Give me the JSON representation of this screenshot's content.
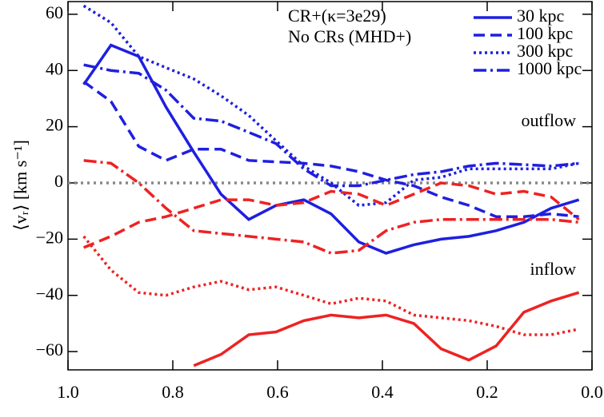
{
  "chart_data": {
    "type": "line",
    "y_label": "⟨vᵣ⟩ [km s⁻¹]",
    "x": [
      0.97,
      0.918,
      0.865,
      0.813,
      0.76,
      0.708,
      0.655,
      0.603,
      0.55,
      0.498,
      0.445,
      0.393,
      0.34,
      0.288,
      0.235,
      0.183,
      0.13,
      0.078,
      0.025
    ],
    "xlim": [
      1,
      0
    ],
    "ylim": [
      -66.5,
      64.5
    ],
    "xticks": [
      {
        "value": 1,
        "label": "1.0"
      },
      0.8,
      0.6,
      0.4,
      0.2,
      {
        "value": 0,
        "label": "0.0"
      }
    ],
    "yticks": [
      {
        "value": -60,
        "label": "−60"
      },
      {
        "value": -40,
        "label": "−40"
      },
      {
        "value": -20,
        "label": "−20"
      },
      0,
      20,
      40,
      60
    ],
    "hline": 0,
    "hline_color": "#888888",
    "groups": [
      {
        "label": "CR+(κ=3e29)",
        "color": "#1f1fe0"
      },
      {
        "label": "No CRs (MHD+)",
        "color": "#ee2222"
      }
    ],
    "annotations": [
      {
        "text": "outflow",
        "color": "#808080"
      },
      {
        "text": "inflow",
        "color": "#808080"
      }
    ],
    "series": [
      {
        "name": "30 kpc",
        "color": "#1f1fe0",
        "style": "solid",
        "values": [
          35,
          49,
          45,
          27,
          11,
          -4,
          -13,
          -8,
          -6,
          -11,
          -21,
          -25,
          -22,
          -20,
          -19,
          -17,
          -14,
          -9,
          -6
        ]
      },
      {
        "name": "100 kpc",
        "color": "#1f1fe0",
        "style": "dashed",
        "values": [
          36,
          29,
          13,
          8,
          12,
          12,
          8,
          7.5,
          7,
          6,
          4,
          1,
          -1,
          -5,
          -8,
          -12,
          -12,
          -11,
          -12
        ]
      },
      {
        "name": "300 kpc",
        "color": "#1f1fe0",
        "style": "dotted",
        "values": [
          63,
          57,
          45,
          41,
          37,
          31,
          24,
          15,
          6,
          0,
          -8,
          -7,
          1,
          2,
          5,
          5,
          5,
          5,
          7
        ]
      },
      {
        "name": "1000 kpc",
        "color": "#1f1fe0",
        "style": "dashdot",
        "values": [
          42,
          40,
          39,
          33,
          23,
          22,
          18,
          14,
          5,
          -1,
          -1,
          1,
          3,
          4,
          6,
          7,
          6.5,
          6,
          7
        ]
      },
      {
        "color": "#ee2222",
        "style": "solid",
        "values": [
          null,
          null,
          null,
          null,
          -65,
          -61,
          -54,
          -53,
          -49,
          -47,
          -48,
          -47,
          -50,
          -59,
          -63,
          -58,
          -46,
          -42,
          -39
        ]
      },
      {
        "color": "#ee2222",
        "style": "dashed",
        "values": [
          -23,
          -19,
          -14,
          -12,
          -9,
          -6,
          -6,
          -8,
          -7,
          -3,
          -4,
          -8,
          -4,
          0,
          -1,
          -4,
          -3,
          -5,
          -13
        ]
      },
      {
        "color": "#ee2222",
        "style": "dotted",
        "values": [
          -19,
          -31,
          -39,
          -40,
          -37,
          -35,
          -38,
          -37,
          -40,
          -43,
          -41,
          -42,
          -47,
          -48,
          -49,
          -51,
          -54,
          -54,
          -52
        ]
      },
      {
        "color": "#ee2222",
        "style": "dashdot",
        "values": [
          8,
          7,
          0,
          -9,
          -17,
          -18,
          -19,
          -20,
          -21,
          -25,
          -24,
          -17,
          -14,
          -13,
          -13,
          -13,
          -13,
          -13,
          -14
        ]
      }
    ]
  }
}
